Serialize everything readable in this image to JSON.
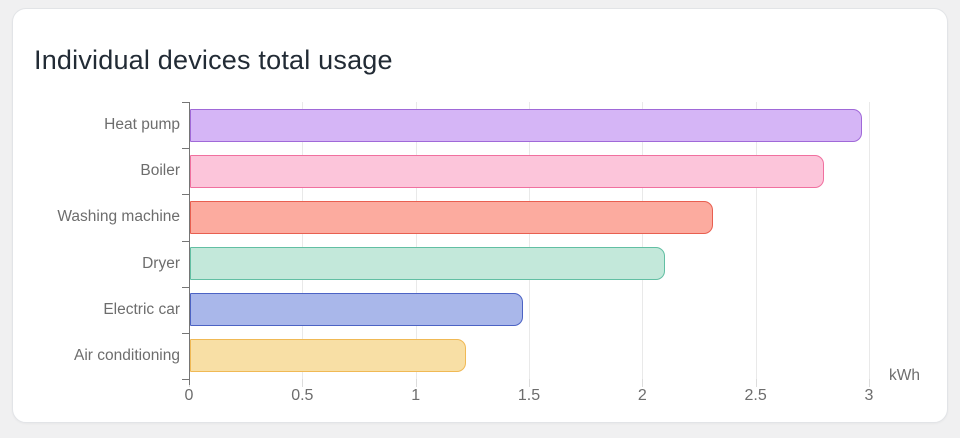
{
  "chart_data": {
    "type": "bar",
    "orientation": "horizontal",
    "title": "Individual devices total usage",
    "categories": [
      "Heat pump",
      "Boiler",
      "Washing machine",
      "Dryer",
      "Electric car",
      "Air conditioning"
    ],
    "values": [
      2.97,
      2.8,
      2.31,
      2.1,
      1.47,
      1.22
    ],
    "bar_colors": [
      {
        "fill": "#d5b5f6",
        "border": "#a069d8"
      },
      {
        "fill": "#fcc5da",
        "border": "#f0709f"
      },
      {
        "fill": "#fcab9f",
        "border": "#e85f50"
      },
      {
        "fill": "#c3e8da",
        "border": "#62bfa3"
      },
      {
        "fill": "#a9b7ea",
        "border": "#4c63c4"
      },
      {
        "fill": "#f8dfa5",
        "border": "#f0b955"
      }
    ],
    "xlabel": "kWh",
    "ylabel": "",
    "xlim": [
      0,
      3
    ],
    "x_ticks": [
      "0",
      "0.5",
      "1",
      "1.5",
      "2",
      "2.5",
      "3"
    ],
    "grid": true,
    "legend": "none"
  }
}
